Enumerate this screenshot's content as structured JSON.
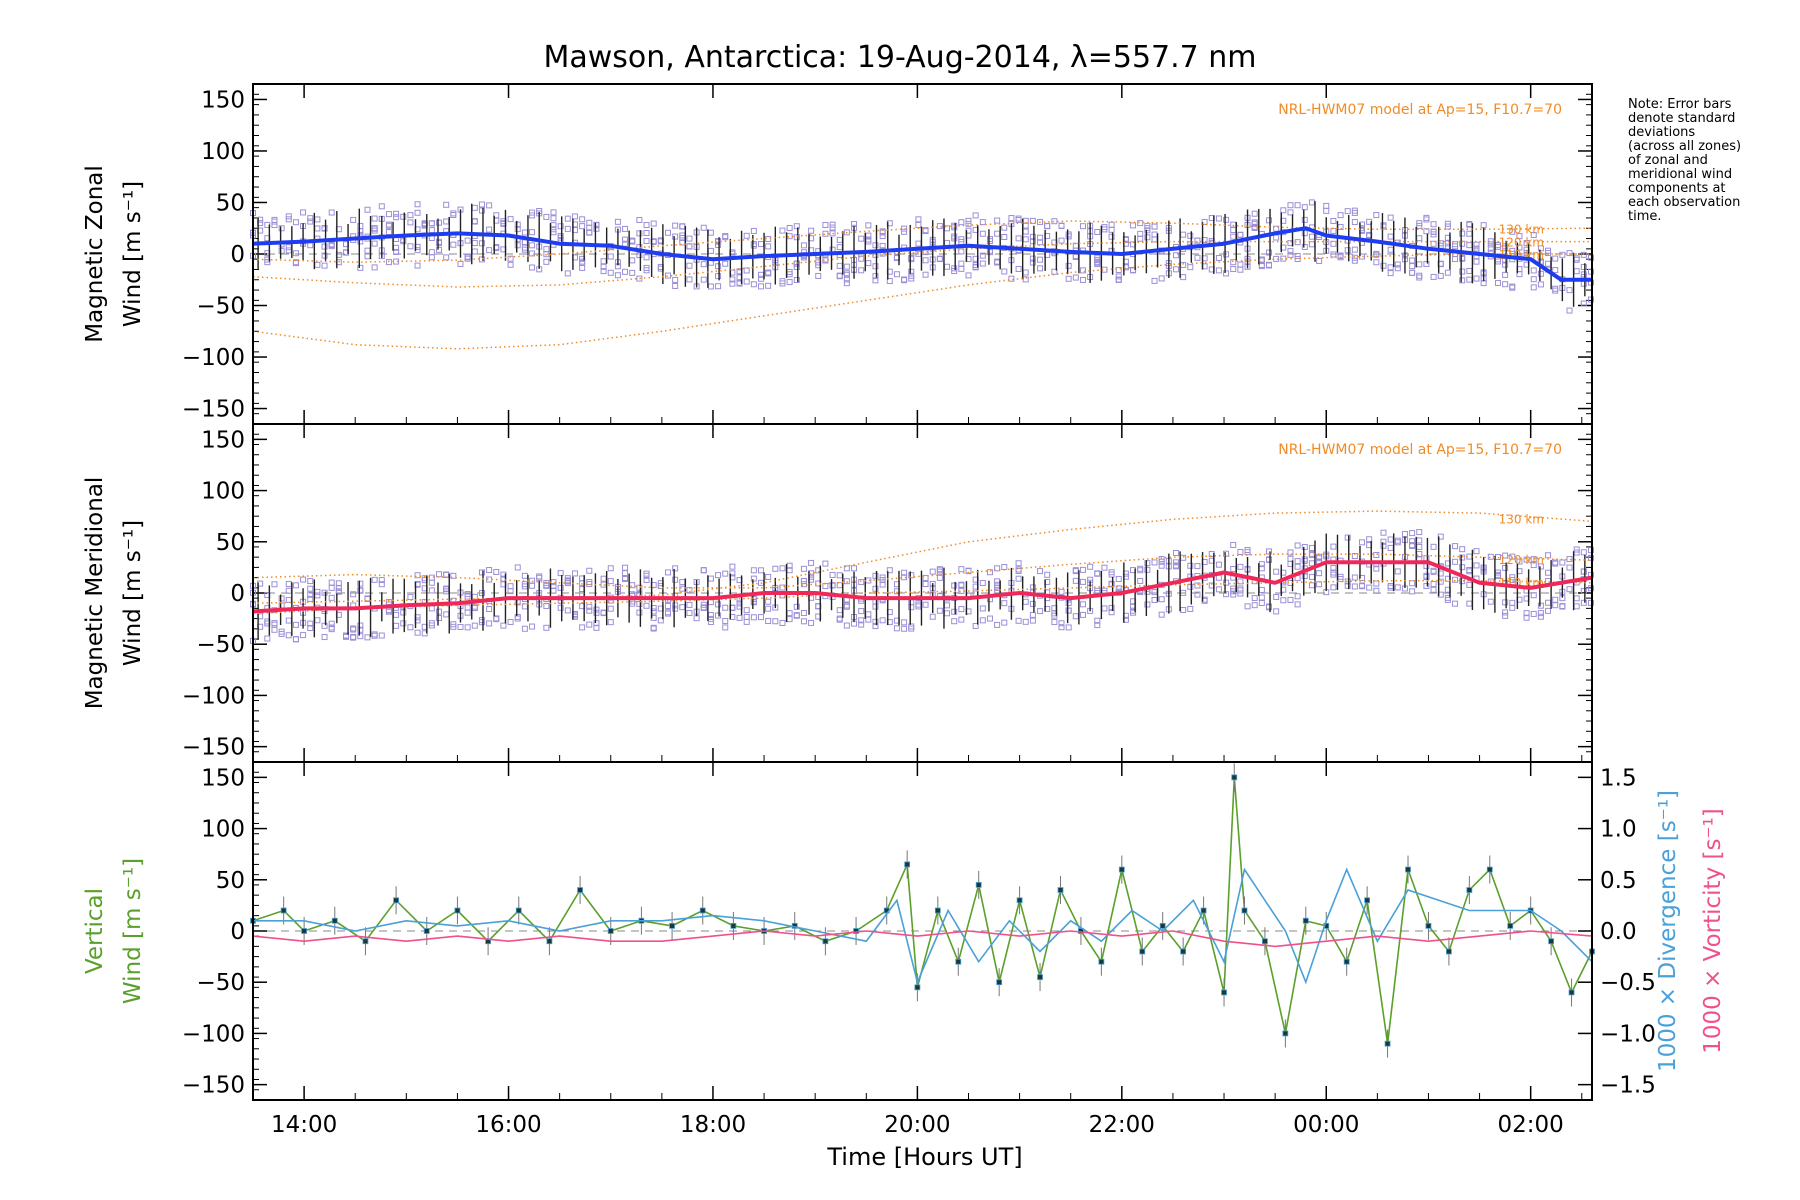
{
  "title": "Mawson, Antarctica: 19-Aug-2014, λ=557.7 nm",
  "note_lines": [
    "Note: Error bars",
    "denote standard",
    "deviations",
    "(across all zones)",
    "of zonal and",
    "meridional wind",
    "components at",
    "each observation",
    "time."
  ],
  "x_axis": {
    "label": "Time [Hours UT]",
    "range": [
      13.5,
      26.6
    ],
    "ticks": [
      14,
      16,
      18,
      20,
      22,
      24,
      26
    ],
    "tick_labels": [
      "14:00",
      "16:00",
      "18:00",
      "20:00",
      "22:00",
      "00:00",
      "02:00"
    ]
  },
  "colors": {
    "zonal_mean": "#1e3cf0",
    "zonal_light": "#5aa0dc",
    "meridional_mean": "#f0285a",
    "model": "#f08c28",
    "samples": "#9b8fd8",
    "vertical": "#5aa02a",
    "divergence": "#4aa0d8",
    "vorticity": "#f0508c",
    "errorbar": "#222222"
  },
  "chart_data": [
    {
      "type": "line",
      "panel": "zonal",
      "ylabel_line1": "Magnetic Zonal",
      "ylabel_line2": "Wind [m s⁻¹]",
      "ylim": [
        -165,
        165
      ],
      "yticks": [
        -150,
        -100,
        -50,
        0,
        50,
        100,
        150
      ],
      "ytick_labels": [
        "−150",
        "−100",
        "−50",
        "0",
        "50",
        "100",
        "150"
      ],
      "model_label": "NRL-HWM07 model at Ap=15, F10.7=70",
      "model_curves": [
        {
          "name": "130 km",
          "x": [
            13.5,
            14.5,
            15.5,
            16.5,
            17.5,
            18.5,
            19.5,
            20.5,
            21.5,
            22.5,
            23.5,
            24.5,
            25.5,
            26.6
          ],
          "y": [
            -5,
            -8,
            -6,
            0,
            8,
            15,
            22,
            28,
            32,
            30,
            26,
            24,
            24,
            25
          ]
        },
        {
          "name": "120 km",
          "x": [
            13.5,
            14.5,
            15.5,
            16.5,
            17.5,
            18.5,
            19.5,
            20.5,
            21.5,
            22.5,
            23.5,
            24.5,
            25.5,
            26.6
          ],
          "y": [
            -22,
            -28,
            -32,
            -30,
            -22,
            -12,
            -2,
            5,
            10,
            12,
            12,
            12,
            12,
            12
          ]
        },
        {
          "name": "110 km",
          "x": [
            13.5,
            14.5,
            15.5,
            16.5,
            17.5,
            18.5,
            19.5,
            20.5,
            21.5,
            22.5,
            23.5,
            24.5,
            25.5,
            26.6
          ],
          "y": [
            -75,
            -88,
            -92,
            -88,
            -75,
            -60,
            -45,
            -30,
            -18,
            -10,
            -5,
            -2,
            0,
            0
          ]
        }
      ],
      "mean": {
        "x": [
          13.5,
          14.0,
          14.5,
          15.0,
          15.5,
          16.0,
          16.5,
          17.0,
          17.5,
          18.0,
          18.5,
          19.0,
          19.5,
          20.0,
          20.5,
          21.0,
          21.5,
          22.0,
          22.5,
          23.0,
          23.5,
          23.8,
          24.0,
          24.5,
          25.0,
          25.5,
          26.0,
          26.3,
          26.6
        ],
        "y": [
          10,
          12,
          15,
          18,
          20,
          18,
          10,
          8,
          0,
          -5,
          -2,
          0,
          2,
          5,
          8,
          5,
          2,
          0,
          5,
          10,
          20,
          25,
          18,
          12,
          5,
          0,
          -5,
          -25,
          -25
        ]
      }
    },
    {
      "type": "line",
      "panel": "meridional",
      "ylabel_line1": "Magnetic Meridional",
      "ylabel_line2": "Wind [m s⁻¹]",
      "ylim": [
        -165,
        165
      ],
      "yticks": [
        -150,
        -100,
        -50,
        0,
        50,
        100,
        150
      ],
      "ytick_labels": [
        "−150",
        "−100",
        "−50",
        "0",
        "50",
        "100",
        "150"
      ],
      "model_label": "NRL-HWM07 model at Ap=15, F10.7=70",
      "model_curves": [
        {
          "name": "130 km",
          "x": [
            13.5,
            14.5,
            15.5,
            16.5,
            17.5,
            18.5,
            19.5,
            20.5,
            21.5,
            22.5,
            23.5,
            24.5,
            25.5,
            26.6
          ],
          "y": [
            -10,
            -8,
            -6,
            -5,
            -2,
            10,
            30,
            50,
            62,
            72,
            78,
            80,
            78,
            70
          ]
        },
        {
          "name": "120 km",
          "x": [
            13.5,
            14.5,
            15.5,
            16.5,
            17.5,
            18.5,
            19.5,
            20.5,
            21.5,
            22.5,
            23.5,
            24.5,
            25.5,
            26.6
          ],
          "y": [
            15,
            18,
            15,
            10,
            5,
            5,
            12,
            20,
            28,
            35,
            38,
            38,
            35,
            32
          ]
        },
        {
          "name": "110 km",
          "x": [
            13.5,
            14.5,
            15.5,
            16.5,
            17.5,
            18.5,
            19.5,
            20.5,
            21.5,
            22.5,
            23.5,
            24.5,
            25.5,
            26.6
          ],
          "y": [
            -20,
            -15,
            -12,
            -10,
            -8,
            -5,
            0,
            2,
            5,
            8,
            10,
            12,
            12,
            10
          ]
        }
      ],
      "mean": {
        "x": [
          13.5,
          14.0,
          14.5,
          15.0,
          15.5,
          16.0,
          16.5,
          17.0,
          17.5,
          18.0,
          18.5,
          19.0,
          19.5,
          20.0,
          20.5,
          21.0,
          21.5,
          22.0,
          22.5,
          23.0,
          23.5,
          24.0,
          24.5,
          25.0,
          25.5,
          26.0,
          26.6
        ],
        "y": [
          -18,
          -15,
          -15,
          -12,
          -10,
          -5,
          -5,
          -5,
          -5,
          -5,
          0,
          0,
          -5,
          -5,
          -5,
          0,
          -5,
          0,
          10,
          20,
          10,
          30,
          30,
          30,
          10,
          5,
          15
        ]
      }
    },
    {
      "type": "line",
      "panel": "vertical",
      "ylabel_line1": "Vertical",
      "ylabel_line2": "Wind [m s⁻¹]",
      "right_label_div": "1000 × Divergence [s⁻¹]",
      "right_label_vort": "1000 × Vorticity [s⁻¹]",
      "ylim": [
        -165,
        165
      ],
      "yticks": [
        -150,
        -100,
        -50,
        0,
        50,
        100,
        150
      ],
      "ytick_labels": [
        "−150",
        "−100",
        "−50",
        "0",
        "50",
        "100",
        "150"
      ],
      "y2lim": [
        -1.65,
        1.65
      ],
      "y2ticks": [
        -1.5,
        -1.0,
        -0.5,
        0.0,
        0.5,
        1.0,
        1.5
      ],
      "y2tick_labels": [
        "−1.5",
        "−1.0",
        "−0.5",
        "0.0",
        "0.5",
        "1.0",
        "1.5"
      ],
      "series": [
        {
          "name": "Vertical Wind",
          "axis": "left",
          "x": [
            13.5,
            13.8,
            14.0,
            14.3,
            14.6,
            14.9,
            15.2,
            15.5,
            15.8,
            16.1,
            16.4,
            16.7,
            17.0,
            17.3,
            17.6,
            17.9,
            18.2,
            18.5,
            18.8,
            19.1,
            19.4,
            19.7,
            19.9,
            20.0,
            20.2,
            20.4,
            20.6,
            20.8,
            21.0,
            21.2,
            21.4,
            21.6,
            21.8,
            22.0,
            22.2,
            22.4,
            22.6,
            22.8,
            23.0,
            23.1,
            23.2,
            23.4,
            23.6,
            23.8,
            24.0,
            24.2,
            24.4,
            24.6,
            24.8,
            25.0,
            25.2,
            25.4,
            25.6,
            25.8,
            26.0,
            26.2,
            26.4,
            26.6
          ],
          "y": [
            10,
            20,
            0,
            10,
            -10,
            30,
            0,
            20,
            -10,
            20,
            -10,
            40,
            0,
            10,
            5,
            20,
            5,
            0,
            5,
            -10,
            0,
            20,
            65,
            -55,
            20,
            -30,
            45,
            -50,
            30,
            -45,
            40,
            0,
            -30,
            60,
            -20,
            5,
            -20,
            20,
            -60,
            150,
            20,
            -10,
            -100,
            10,
            5,
            -30,
            30,
            -110,
            60,
            5,
            -20,
            40,
            60,
            5,
            20,
            -10,
            -60,
            -20
          ]
        },
        {
          "name": "1000 × Divergence",
          "axis": "right",
          "x": [
            13.5,
            14.0,
            14.5,
            15.0,
            15.5,
            16.0,
            16.5,
            17.0,
            17.5,
            18.0,
            18.5,
            19.0,
            19.5,
            19.8,
            20.0,
            20.3,
            20.6,
            20.9,
            21.2,
            21.5,
            21.8,
            22.1,
            22.4,
            22.7,
            23.0,
            23.2,
            23.4,
            23.6,
            23.8,
            24.0,
            24.2,
            24.5,
            24.8,
            25.1,
            25.4,
            25.7,
            26.0,
            26.3,
            26.6
          ],
          "y": [
            0.1,
            0.1,
            0.0,
            0.1,
            0.05,
            0.1,
            0.0,
            0.1,
            0.1,
            0.15,
            0.1,
            0.0,
            -0.1,
            0.3,
            -0.5,
            0.2,
            -0.3,
            0.1,
            -0.2,
            0.1,
            -0.1,
            0.2,
            0.0,
            0.3,
            -0.3,
            0.6,
            0.3,
            0.0,
            -0.5,
            0.1,
            0.6,
            -0.1,
            0.4,
            0.3,
            0.2,
            0.2,
            0.2,
            0.0,
            -0.3
          ]
        },
        {
          "name": "1000 × Vorticity",
          "axis": "right",
          "x": [
            13.5,
            14.0,
            14.5,
            15.0,
            15.5,
            16.0,
            16.5,
            17.0,
            17.5,
            18.0,
            18.5,
            19.0,
            19.5,
            20.0,
            20.5,
            21.0,
            21.5,
            22.0,
            22.5,
            23.0,
            23.5,
            24.0,
            24.5,
            25.0,
            25.5,
            26.0,
            26.6
          ],
          "y": [
            -0.05,
            -0.1,
            -0.05,
            -0.1,
            -0.05,
            -0.1,
            -0.05,
            -0.1,
            -0.1,
            -0.05,
            0.0,
            -0.05,
            0.0,
            -0.05,
            0.0,
            -0.05,
            0.0,
            -0.05,
            0.0,
            -0.1,
            -0.15,
            -0.1,
            -0.05,
            -0.1,
            -0.05,
            0.0,
            -0.05
          ]
        }
      ]
    }
  ]
}
